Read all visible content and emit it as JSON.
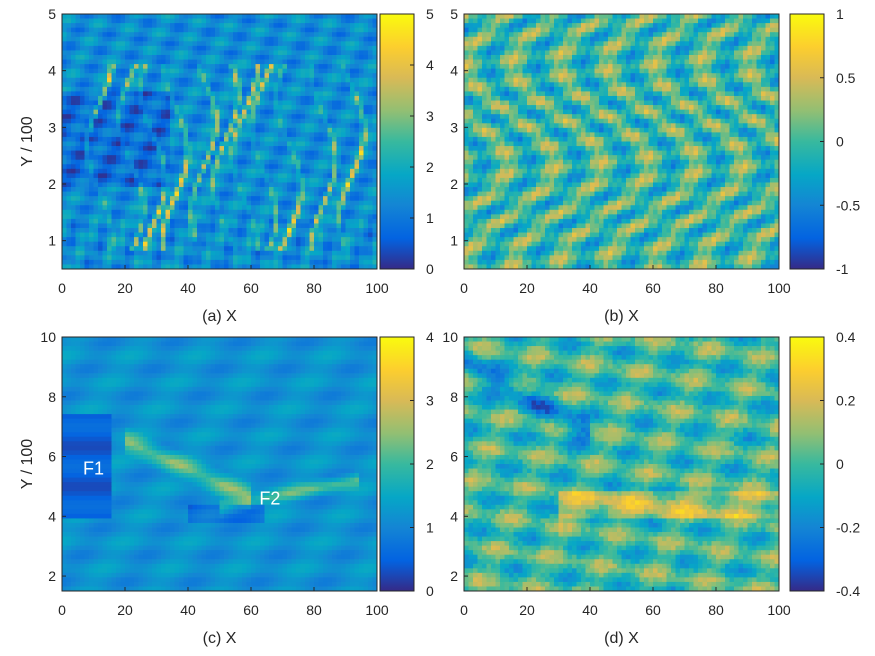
{
  "chart_data": [
    {
      "id": "a",
      "type": "heatmap",
      "xlabel": "(a) X",
      "ylabel": "Y / 100",
      "xlim": [
        0,
        100
      ],
      "ylim": [
        0.5,
        5
      ],
      "xticks": [
        0,
        20,
        40,
        60,
        80,
        100
      ],
      "yticks": [
        1,
        2,
        3,
        4,
        5
      ],
      "clim": [
        0,
        5
      ],
      "cticks": [
        0,
        1,
        2,
        3,
        4,
        5
      ],
      "colormap": "parula",
      "annotations": []
    },
    {
      "id": "b",
      "type": "heatmap",
      "xlabel": "(b) X",
      "ylabel": "",
      "xlim": [
        0,
        100
      ],
      "ylim": [
        0.5,
        5
      ],
      "xticks": [
        0,
        20,
        40,
        60,
        80,
        100
      ],
      "yticks": [
        1,
        2,
        3,
        4,
        5
      ],
      "clim": [
        -1,
        1
      ],
      "cticks": [
        -1,
        -0.5,
        0,
        0.5,
        1
      ],
      "colormap": "parula",
      "annotations": []
    },
    {
      "id": "c",
      "type": "heatmap",
      "xlabel": "(c) X",
      "ylabel": "Y / 100",
      "xlim": [
        0,
        100
      ],
      "ylim": [
        1.5,
        10
      ],
      "xticks": [
        0,
        20,
        40,
        60,
        80,
        100
      ],
      "yticks": [
        2,
        4,
        6,
        8,
        10
      ],
      "clim": [
        0,
        4
      ],
      "cticks": [
        0,
        1,
        2,
        3,
        4
      ],
      "colormap": "parula",
      "annotations": [
        {
          "text": "F1",
          "x": 10,
          "y": 5.4
        },
        {
          "text": "F2",
          "x": 66,
          "y": 4.4
        }
      ]
    },
    {
      "id": "d",
      "type": "heatmap",
      "xlabel": "(d) X",
      "ylabel": "",
      "xlim": [
        0,
        100
      ],
      "ylim": [
        1.5,
        10
      ],
      "xticks": [
        0,
        20,
        40,
        60,
        80,
        100
      ],
      "yticks": [
        2,
        4,
        6,
        8,
        10
      ],
      "clim": [
        -0.4,
        0.4
      ],
      "cticks": [
        -0.4,
        -0.2,
        0,
        0.2,
        0.4
      ],
      "colormap": "parula",
      "annotations": []
    }
  ]
}
